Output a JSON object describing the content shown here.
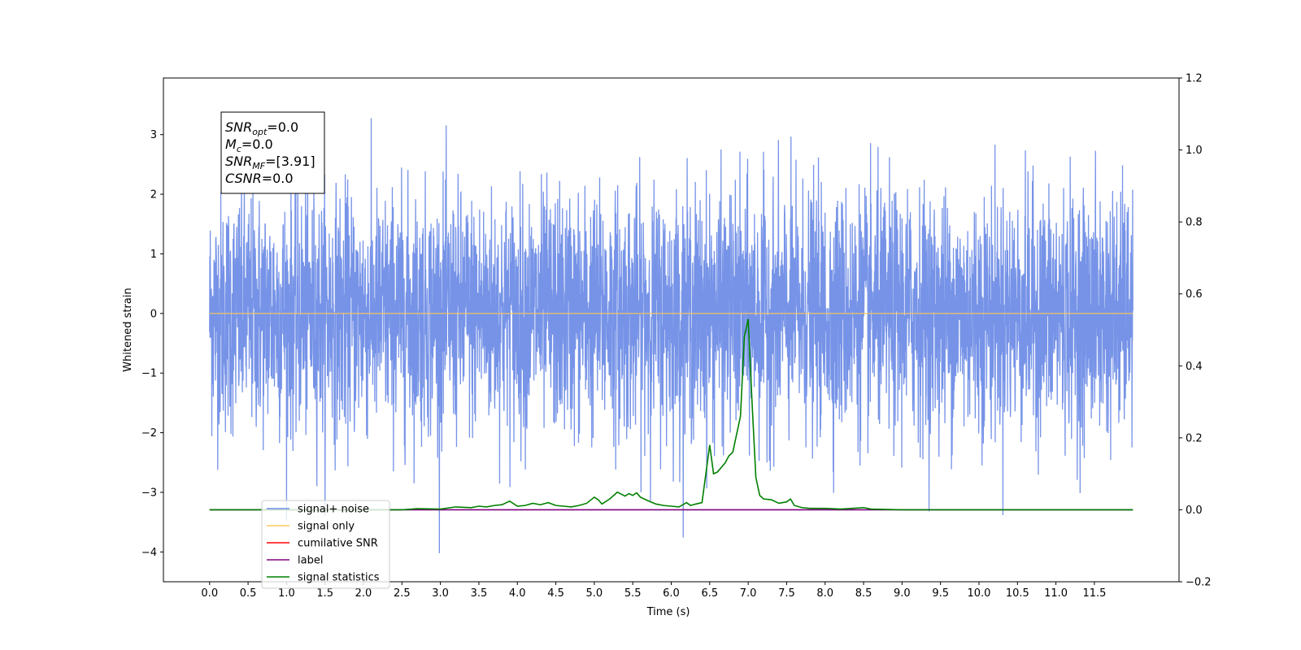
{
  "chart_data": {
    "type": "line",
    "title": "",
    "xlabel": "Time (s)",
    "ylabel": "Whitened strain",
    "xlim": [
      -0.6,
      12.6
    ],
    "ylim": [
      -4.5,
      3.95
    ],
    "ylim_right": [
      -0.2,
      1.2
    ],
    "x_ticks": [
      0.0,
      0.5,
      1.0,
      1.5,
      2.0,
      2.5,
      3.0,
      3.5,
      4.0,
      4.5,
      5.0,
      5.5,
      6.0,
      6.5,
      7.0,
      7.5,
      8.0,
      8.5,
      9.0,
      9.5,
      10.0,
      10.5,
      11.0,
      11.5
    ],
    "x_tick_labels": [
      "0.0",
      "0.5",
      "1.0",
      "1.5",
      "2.0",
      "2.5",
      "3.0",
      "3.5",
      "4.0",
      "4.5",
      "5.0",
      "5.5",
      "6.0",
      "6.5",
      "7.0",
      "7.5",
      "8.0",
      "8.5",
      "9.0",
      "9.5",
      "10.0",
      "10.5",
      "11.0",
      "11.5"
    ],
    "y_ticks": [
      -4,
      -3,
      -2,
      -1,
      0,
      1,
      2,
      3
    ],
    "y_tick_labels": [
      "−4",
      "−3",
      "−2",
      "−1",
      "0",
      "1",
      "2",
      "3"
    ],
    "y_right_ticks": [
      -0.2,
      0.0,
      0.2,
      0.4,
      0.6,
      0.8,
      1.0,
      1.2
    ],
    "y_right_tick_labels": [
      "−0.2",
      "0.0",
      "0.2",
      "0.4",
      "0.6",
      "0.8",
      "1.0",
      "1.2"
    ],
    "grid": false,
    "legend": {
      "placement": "lower-left",
      "entries": [
        {
          "label": "signal+ noise",
          "color": "#6f8de6"
        },
        {
          "label": "signal only",
          "color": "#ffc85a"
        },
        {
          "label": "cumilative SNR",
          "color": "#ff0000"
        },
        {
          "label": "label",
          "color": "#800080"
        },
        {
          "label": "signal statistics",
          "color": "#008000"
        }
      ]
    },
    "annotation_box": {
      "lines": [
        {
          "base": "SNR",
          "sub": "opt",
          "value": "=0.0"
        },
        {
          "base": "M",
          "sub": "c",
          "value": "=0.0"
        },
        {
          "base": "SNR",
          "sub": "MF",
          "value": "=[3.91]"
        },
        {
          "base": "CSNR",
          "sub": "",
          "value": "=0.0"
        }
      ]
    },
    "series": [
      {
        "name": "signal+ noise",
        "axis": "left",
        "color": "#6f8de6",
        "x_range": [
          0.0,
          12.0
        ],
        "note_amplitude_envelope": [
          -4.1,
          3.6
        ]
      },
      {
        "name": "signal only",
        "axis": "left",
        "color": "#ffc85a",
        "x": [
          0.0,
          12.0
        ],
        "y": [
          0.0,
          0.0
        ]
      },
      {
        "name": "label",
        "axis": "right",
        "color": "#800080",
        "x": [
          0.0,
          12.0
        ],
        "y": [
          0.0,
          0.0
        ]
      },
      {
        "name": "signal statistics",
        "axis": "right",
        "color": "#008000",
        "x": [
          0.0,
          1.0,
          2.0,
          2.5,
          2.7,
          3.0,
          3.2,
          3.4,
          3.5,
          3.6,
          3.7,
          3.8,
          3.9,
          4.0,
          4.1,
          4.2,
          4.3,
          4.4,
          4.5,
          4.6,
          4.7,
          4.8,
          4.9,
          5.0,
          5.05,
          5.1,
          5.2,
          5.3,
          5.4,
          5.45,
          5.5,
          5.55,
          5.6,
          5.7,
          5.8,
          5.9,
          6.0,
          6.1,
          6.2,
          6.25,
          6.3,
          6.4,
          6.5,
          6.55,
          6.6,
          6.7,
          6.75,
          6.8,
          6.9,
          6.95,
          7.0,
          7.05,
          7.1,
          7.15,
          7.2,
          7.3,
          7.4,
          7.5,
          7.55,
          7.6,
          7.7,
          7.8,
          8.0,
          8.2,
          8.5,
          8.6,
          9.0,
          10.0,
          11.0,
          12.0
        ],
        "y": [
          0.0,
          0.0,
          0.0,
          0.0,
          0.003,
          0.002,
          0.008,
          0.006,
          0.01,
          0.008,
          0.012,
          0.014,
          0.024,
          0.01,
          0.012,
          0.018,
          0.014,
          0.02,
          0.012,
          0.01,
          0.008,
          0.012,
          0.018,
          0.035,
          0.028,
          0.016,
          0.03,
          0.049,
          0.038,
          0.045,
          0.04,
          0.047,
          0.035,
          0.025,
          0.016,
          0.012,
          0.01,
          0.008,
          0.02,
          0.012,
          0.015,
          0.02,
          0.18,
          0.1,
          0.105,
          0.13,
          0.15,
          0.16,
          0.26,
          0.48,
          0.53,
          0.3,
          0.09,
          0.04,
          0.03,
          0.028,
          0.018,
          0.022,
          0.03,
          0.012,
          0.006,
          0.004,
          0.004,
          0.002,
          0.006,
          0.002,
          0.0,
          0.0,
          0.0,
          0.0
        ]
      }
    ]
  }
}
